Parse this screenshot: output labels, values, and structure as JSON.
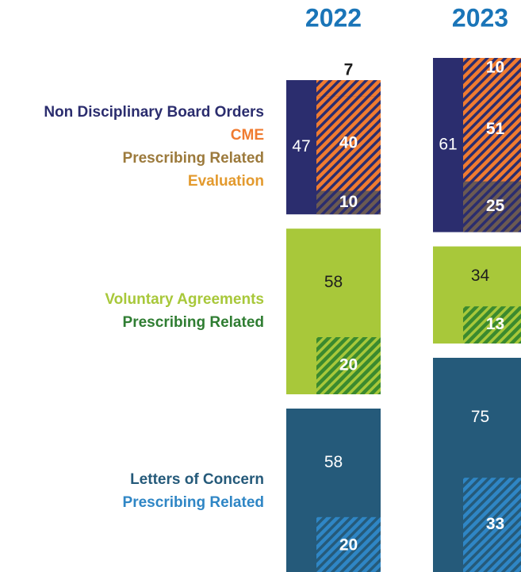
{
  "years": [
    "2022",
    "2023"
  ],
  "groups": [
    {
      "legend": [
        {
          "text": "Non Disciplinary Board Orders",
          "color": "#2b2d6e"
        },
        {
          "text": "CME",
          "color": "#f07b30"
        },
        {
          "text": "Prescribing Related",
          "color": "#9c7a3c"
        },
        {
          "text": "Evaluation",
          "color": "#e39a2e"
        }
      ],
      "base_color": "#2b2d6e",
      "label_color": "#ffffff",
      "segment_colors": [
        "#f07b30",
        "#f07b30",
        "#6b5a52"
      ],
      "values": [
        {
          "total": 47,
          "segments": [
            7,
            40,
            10
          ]
        },
        {
          "total": 61,
          "segments": [
            10,
            51,
            25
          ]
        }
      ]
    },
    {
      "legend": [
        {
          "text": "Voluntary Agreements",
          "color": "#a8c83a"
        },
        {
          "text": "Prescribing Related",
          "color": "#2f7d32"
        }
      ],
      "base_color": "#a8c83a",
      "label_color": "#1e1e1e",
      "segment_colors": [
        "#3b8a2e"
      ],
      "values": [
        {
          "total": 58,
          "segments": [
            20
          ]
        },
        {
          "total": 34,
          "segments": [
            13
          ]
        }
      ]
    },
    {
      "legend": [
        {
          "text": "Letters of Concern",
          "color": "#255a7a"
        },
        {
          "text": "Prescribing Related",
          "color": "#2f86c5"
        }
      ],
      "base_color": "#255a7a",
      "label_color": "#ffffff",
      "segment_colors": [
        "#2f86c5"
      ],
      "values": [
        {
          "total": 58,
          "segments": [
            20
          ]
        },
        {
          "total": 75,
          "segments": [
            33
          ]
        }
      ]
    }
  ]
}
